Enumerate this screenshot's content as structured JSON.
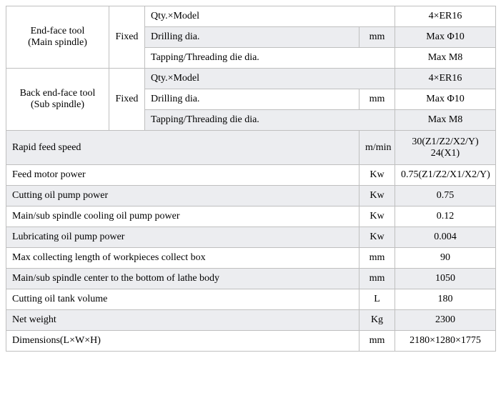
{
  "colors": {
    "border": "#bfbfbf",
    "alt_bg": "#ecedf0",
    "text": "#000000",
    "bg": "#ffffff"
  },
  "section1": {
    "cat": "End-face tool\n(Main spindle)",
    "fix": "Fixed",
    "rows": [
      {
        "param": "Qty.×Model",
        "unit": "",
        "val": "4×ER16"
      },
      {
        "param": "Drilling dia.",
        "unit": "mm",
        "val": "Max Φ10"
      },
      {
        "param": "Tapping/Threading die dia.",
        "unit": "",
        "val": "Max M8"
      }
    ]
  },
  "section2": {
    "cat": "Back end-face tool\n(Sub spindle)",
    "fix": "Fixed",
    "rows": [
      {
        "param": "Qty.×Model",
        "unit": "",
        "val": "4×ER16"
      },
      {
        "param": "Drilling dia.",
        "unit": "mm",
        "val": "Max Φ10"
      },
      {
        "param": "Tapping/Threading die dia.",
        "unit": "",
        "val": "Max M8"
      }
    ]
  },
  "simple_rows": [
    {
      "param": "Rapid feed speed",
      "unit": "m/min",
      "val": "30(Z1/Z2/X2/Y)\n24(X1)",
      "alt": true,
      "tall": true
    },
    {
      "param": "Feed motor power",
      "unit": "Kw",
      "val": "0.75(Z1/Z2/X1/X2/Y)",
      "alt": false
    },
    {
      "param": "Cutting oil pump power",
      "unit": "Kw",
      "val": "0.75",
      "alt": true
    },
    {
      "param": "Main/sub spindle cooling oil pump power",
      "unit": "Kw",
      "val": "0.12",
      "alt": false
    },
    {
      "param": "Lubricating oil pump power",
      "unit": "Kw",
      "val": "0.004",
      "alt": true
    },
    {
      "param": "Max collecting length of workpieces collect box",
      "unit": "mm",
      "val": "90",
      "alt": false
    },
    {
      "param": "Main/sub spindle center to the bottom of lathe body",
      "unit": "mm",
      "val": "1050",
      "alt": true
    },
    {
      "param": "Cutting oil tank volume",
      "unit": "L",
      "val": "180",
      "alt": false
    },
    {
      "param": "Net weight",
      "unit": "Kg",
      "val": "2300",
      "alt": true
    },
    {
      "param": "Dimensions(L×W×H)",
      "unit": "mm",
      "val": "2180×1280×1775",
      "alt": false
    }
  ]
}
